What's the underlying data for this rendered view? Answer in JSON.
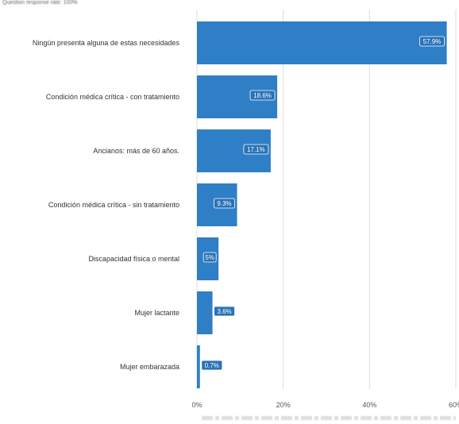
{
  "header": {
    "response_rate_text": "Question response rate: 100%"
  },
  "chart_data": {
    "type": "bar",
    "orientation": "horizontal",
    "categories": [
      "Ningún presenta alguna de estas necesidades",
      "Condición médica crítica - con tratamiento",
      "Ancianos: más de 60 años.",
      "Condición médica crítica - sin tratamiento",
      "Discapacidad física o mental",
      "Mujer lactante",
      "Mujer embarazada"
    ],
    "values": [
      57.9,
      18.6,
      17.1,
      9.3,
      5,
      3.6,
      0.7
    ],
    "data_labels": [
      "57.9%",
      "18.6%",
      "17.1%",
      "9.3%",
      "5%",
      "3.6%",
      "0.7%"
    ],
    "x_ticks": [
      "0%",
      "20%",
      "40%",
      "60%"
    ],
    "x_tick_values": [
      0,
      20,
      40,
      60
    ],
    "xlim": [
      0,
      60
    ],
    "grid": true,
    "bar_color": "#2f7fc7",
    "label_bg_color": "#2a72b5",
    "grid_color": "#e2e2e2"
  }
}
